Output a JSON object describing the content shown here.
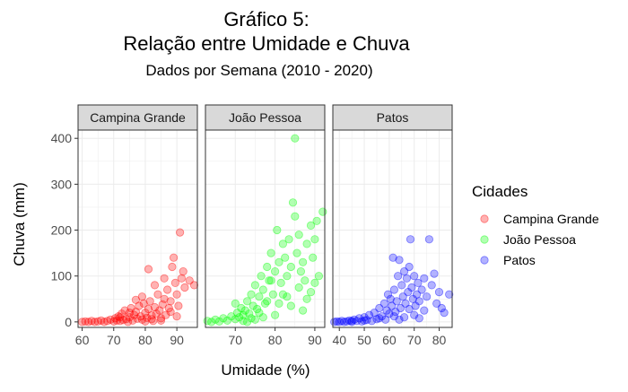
{
  "colors": {
    "campina": "#ff0000",
    "joao": "#00ff00",
    "patos": "#0000ff",
    "strip_fill": "#d9d9d9",
    "grid": "#ebebeb",
    "panel_border": "#333333",
    "text": "#1a1a1a",
    "tick_text": "#4d4d4d"
  },
  "chart_data": {
    "type": "scatter",
    "title": "Gráfico 5:",
    "title_line2": "Relação entre Umidade e Chuva",
    "subtitle": "Dados por Semana (2010 - 2020)",
    "xlabel": "Umidade (%)",
    "ylabel": "Chuva (mm)",
    "ylim": [
      -12,
      418
    ],
    "y_ticks": [
      0,
      100,
      200,
      300,
      400
    ],
    "grid": true,
    "legend": {
      "title": "Cidades",
      "position": "right",
      "entries": [
        "Campina Grande",
        "João Pessoa",
        "Patos"
      ]
    },
    "facets": [
      {
        "name": "Campina Grande",
        "color": "#ff0000",
        "xlim": [
          58.7,
          96.5
        ],
        "x_ticks": [
          60,
          70,
          80,
          90
        ],
        "points": [
          [
            60,
            0
          ],
          [
            61,
            1
          ],
          [
            62,
            0
          ],
          [
            63,
            2
          ],
          [
            64,
            0
          ],
          [
            65,
            1
          ],
          [
            66,
            3
          ],
          [
            67,
            0
          ],
          [
            68,
            2
          ],
          [
            69,
            5
          ],
          [
            70,
            1
          ],
          [
            70.5,
            8
          ],
          [
            71,
            3
          ],
          [
            71.5,
            12
          ],
          [
            72,
            2
          ],
          [
            72.5,
            18
          ],
          [
            73,
            4
          ],
          [
            73.5,
            25
          ],
          [
            74,
            6
          ],
          [
            74.5,
            0
          ],
          [
            75,
            10
          ],
          [
            75.5,
            30
          ],
          [
            76,
            3
          ],
          [
            76.5,
            15
          ],
          [
            77,
            22
          ],
          [
            77.5,
            7
          ],
          [
            78,
            35
          ],
          [
            78.5,
            12
          ],
          [
            79,
            5
          ],
          [
            79.5,
            40
          ],
          [
            80,
            20
          ],
          [
            80.5,
            9
          ],
          [
            81,
            28
          ],
          [
            81.5,
            45
          ],
          [
            82,
            14
          ],
          [
            82.5,
            2
          ],
          [
            83,
            32
          ],
          [
            83.5,
            18
          ],
          [
            84,
            60
          ],
          [
            84.5,
            25
          ],
          [
            85,
            8
          ],
          [
            85.5,
            38
          ],
          [
            86,
            50
          ],
          [
            86.5,
            15
          ],
          [
            87,
            70
          ],
          [
            87.5,
            30
          ],
          [
            88,
            45
          ],
          [
            88.5,
            120
          ],
          [
            89,
            140
          ],
          [
            89.5,
            85
          ],
          [
            90,
            60
          ],
          [
            90.5,
            35
          ],
          [
            91,
            195
          ],
          [
            91.5,
            95
          ],
          [
            92,
            110
          ],
          [
            92.5,
            75
          ],
          [
            94,
            90
          ],
          [
            95.5,
            80
          ],
          [
            81,
            115
          ],
          [
            86,
            95
          ],
          [
            83,
            80
          ],
          [
            79,
            55
          ],
          [
            77,
            48
          ],
          [
            75,
            20
          ],
          [
            72,
            10
          ],
          [
            88,
            22
          ],
          [
            90,
            12
          ],
          [
            85,
            3
          ],
          [
            82,
            6
          ],
          [
            80,
            1
          ]
        ]
      },
      {
        "name": "João Pessoa",
        "color": "#00ff00",
        "xlim": [
          62.5,
          92.5
        ],
        "x_ticks": [
          70,
          80,
          90
        ],
        "points": [
          [
            63,
            2
          ],
          [
            64,
            0
          ],
          [
            65,
            5
          ],
          [
            66,
            1
          ],
          [
            67,
            8
          ],
          [
            68,
            3
          ],
          [
            69,
            12
          ],
          [
            70,
            6
          ],
          [
            70.5,
            20
          ],
          [
            71,
            10
          ],
          [
            71.5,
            30
          ],
          [
            72,
            15
          ],
          [
            72.5,
            25
          ],
          [
            73,
            45
          ],
          [
            73.5,
            18
          ],
          [
            74,
            60
          ],
          [
            74.5,
            35
          ],
          [
            75,
            80
          ],
          [
            75.5,
            28
          ],
          [
            76,
            55
          ],
          [
            76.5,
            100
          ],
          [
            77,
            70
          ],
          [
            77.5,
            40
          ],
          [
            78,
            120
          ],
          [
            78.5,
            90
          ],
          [
            79,
            150
          ],
          [
            79.5,
            60
          ],
          [
            80,
            110
          ],
          [
            80.5,
            200
          ],
          [
            81,
            130
          ],
          [
            81.5,
            85
          ],
          [
            82,
            170
          ],
          [
            82.5,
            140
          ],
          [
            83,
            100
          ],
          [
            83.5,
            180
          ],
          [
            84,
            120
          ],
          [
            84.5,
            260
          ],
          [
            85,
            230
          ],
          [
            85.5,
            150
          ],
          [
            86,
            190
          ],
          [
            86.5,
            110
          ],
          [
            87,
            130
          ],
          [
            87.5,
            90
          ],
          [
            88,
            170
          ],
          [
            89,
            210
          ],
          [
            89.5,
            140
          ],
          [
            90,
            180
          ],
          [
            90.5,
            220
          ],
          [
            91,
            100
          ],
          [
            92,
            240
          ],
          [
            85,
            400
          ],
          [
            78,
            45
          ],
          [
            76,
            20
          ],
          [
            74,
            8
          ],
          [
            72,
            2
          ],
          [
            82,
            60
          ],
          [
            84,
            35
          ],
          [
            86,
            75
          ],
          [
            80,
            15
          ],
          [
            88,
            50
          ],
          [
            79,
            90
          ],
          [
            81,
            40
          ],
          [
            83,
            55
          ],
          [
            77,
            10
          ],
          [
            75,
            5
          ],
          [
            87,
            25
          ],
          [
            89,
            65
          ],
          [
            90,
            85
          ],
          [
            73,
            0
          ],
          [
            70,
            40
          ]
        ]
      },
      {
        "name": "Patos",
        "color": "#0000ff",
        "xlim": [
          37.4,
          85.2
        ],
        "x_ticks": [
          40,
          50,
          60,
          70,
          80
        ],
        "points": [
          [
            38,
            0
          ],
          [
            39,
            1
          ],
          [
            40,
            0
          ],
          [
            41,
            2
          ],
          [
            42,
            0
          ],
          [
            43,
            1
          ],
          [
            44,
            3
          ],
          [
            45,
            0
          ],
          [
            46,
            5
          ],
          [
            47,
            2
          ],
          [
            48,
            8
          ],
          [
            49,
            1
          ],
          [
            50,
            10
          ],
          [
            51,
            4
          ],
          [
            52,
            15
          ],
          [
            53,
            2
          ],
          [
            54,
            20
          ],
          [
            55,
            6
          ],
          [
            56,
            30
          ],
          [
            57,
            12
          ],
          [
            58,
            40
          ],
          [
            58.5,
            5
          ],
          [
            59,
            25
          ],
          [
            59.5,
            60
          ],
          [
            60,
            18
          ],
          [
            60.5,
            50
          ],
          [
            61,
            35
          ],
          [
            61.5,
            140
          ],
          [
            62,
            70
          ],
          [
            62.5,
            22
          ],
          [
            63,
            45
          ],
          [
            63.5,
            100
          ],
          [
            64,
            135
          ],
          [
            64.5,
            30
          ],
          [
            65,
            80
          ],
          [
            65.5,
            55
          ],
          [
            66,
            110
          ],
          [
            66.5,
            40
          ],
          [
            67,
            95
          ],
          [
            67.5,
            65
          ],
          [
            68,
            120
          ],
          [
            68.5,
            180
          ],
          [
            69,
            75
          ],
          [
            69.5,
            50
          ],
          [
            70,
            100
          ],
          [
            70.5,
            35
          ],
          [
            71,
            60
          ],
          [
            71.5,
            85
          ],
          [
            72,
            45
          ],
          [
            73,
            70
          ],
          [
            74,
            95
          ],
          [
            75,
            55
          ],
          [
            76,
            180
          ],
          [
            77,
            80
          ],
          [
            78,
            105
          ],
          [
            79,
            40
          ],
          [
            80,
            65
          ],
          [
            81,
            30
          ],
          [
            82,
            20
          ],
          [
            84,
            60
          ],
          [
            66,
            10
          ],
          [
            64,
            5
          ],
          [
            70,
            15
          ],
          [
            72,
            8
          ],
          [
            74,
            25
          ],
          [
            62,
            12
          ],
          [
            68,
            28
          ],
          [
            56,
            8
          ],
          [
            50,
            3
          ],
          [
            45,
            2
          ]
        ]
      }
    ]
  }
}
